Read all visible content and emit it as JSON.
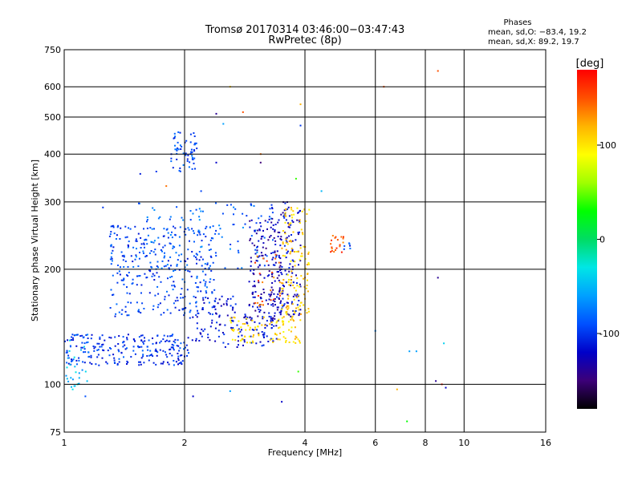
{
  "colors": {
    "background": "#ffffff",
    "gridline": "#000000",
    "colorscale": [
      "#000000",
      "#3c0078",
      "#0000c8",
      "#0050ff",
      "#00a0ff",
      "#00e6e6",
      "#00dc64",
      "#00ff00",
      "#a0ff00",
      "#ffff00",
      "#ffb400",
      "#ff5000",
      "#ff0000"
    ]
  },
  "chart_data": {
    "type": "scatter",
    "title_line1": "Tromsø 20170314 03:46:00−03:47:43",
    "title_line2": "RwPretec (8p)",
    "xlabel": "Frequency [MHz]",
    "ylabel": "Stationary phase Virtual Height [km]",
    "x_scale": "log",
    "y_scale": "log",
    "xlim": [
      1,
      16
    ],
    "ylim": [
      75,
      750
    ],
    "x_ticks": [
      1,
      2,
      4,
      6,
      8,
      10,
      16
    ],
    "y_ticks": [
      75,
      100,
      200,
      300,
      400,
      500,
      600,
      750
    ],
    "grid": true,
    "stats": {
      "title": "Phases",
      "line_o": "mean, sd,O: −83.4, 19.2",
      "line_x": "mean, sd,X:  89.2, 19.7"
    },
    "colorbar": {
      "label": "[deg]",
      "range": [
        -180,
        180
      ],
      "ticks": [
        100,
        0,
        -100
      ]
    },
    "clusters": [
      {
        "name": "low-band trace",
        "freq": [
          1.0,
          2.05
        ],
        "height": [
          112,
          135
        ],
        "phase": -100,
        "n": 240
      },
      {
        "name": "low-band start",
        "freq": [
          1.0,
          1.15
        ],
        "height": [
          98,
          135
        ],
        "phase": -50,
        "n": 30
      },
      {
        "name": "mid trace",
        "freq": [
          1.3,
          2.4
        ],
        "height": [
          150,
          260
        ],
        "phase": -95,
        "n": 320
      },
      {
        "name": "mid upper",
        "freq": [
          1.5,
          3.4
        ],
        "height": [
          200,
          300
        ],
        "phase": -80,
        "n": 120
      },
      {
        "name": "second trace",
        "freq": [
          2.05,
          3.4
        ],
        "height": [
          125,
          170
        ],
        "phase": -115,
        "n": 150
      },
      {
        "name": "cusp region",
        "freq": [
          2.9,
          3.5
        ],
        "height": [
          145,
          270
        ],
        "phase": -130,
        "n": 140
      },
      {
        "name": "high band dense",
        "freq": [
          3.3,
          3.9
        ],
        "height": [
          150,
          300
        ],
        "phase": -120,
        "n": 140
      },
      {
        "name": "x trace lower",
        "freq": [
          2.6,
          3.9
        ],
        "height": [
          128,
          150
        ],
        "phase": 105,
        "n": 90
      },
      {
        "name": "x trace upper",
        "freq": [
          3.5,
          4.1
        ],
        "height": [
          150,
          290
        ],
        "phase": 110,
        "n": 130
      },
      {
        "name": "upper echo",
        "freq": [
          1.85,
          2.15
        ],
        "height": [
          360,
          460
        ],
        "phase": -95,
        "n": 60
      },
      {
        "name": "far cluster",
        "freq": [
          4.55,
          5.0
        ],
        "height": [
          220,
          245
        ],
        "phase": 150,
        "n": 20
      },
      {
        "name": "far cluster blue",
        "freq": [
          5.0,
          5.25
        ],
        "height": [
          225,
          235
        ],
        "phase": -95,
        "n": 6
      },
      {
        "name": "orange mid",
        "freq": [
          3.0,
          3.5
        ],
        "height": [
          160,
          220
        ],
        "phase": 145,
        "n": 25
      }
    ],
    "sparse_points": [
      {
        "f": 2.4,
        "h": 510,
        "p": -140
      },
      {
        "f": 2.5,
        "h": 480,
        "p": -60
      },
      {
        "f": 2.6,
        "h": 600,
        "p": 110
      },
      {
        "f": 2.8,
        "h": 515,
        "p": 150
      },
      {
        "f": 3.1,
        "h": 400,
        "p": 140
      },
      {
        "f": 3.1,
        "h": 380,
        "p": -150
      },
      {
        "f": 3.9,
        "h": 540,
        "p": 120
      },
      {
        "f": 3.9,
        "h": 475,
        "p": -100
      },
      {
        "f": 4.4,
        "h": 320,
        "p": -50
      },
      {
        "f": 6.3,
        "h": 600,
        "p": 150
      },
      {
        "f": 8.6,
        "h": 660,
        "p": 150
      },
      {
        "f": 8.6,
        "h": 190,
        "p": -140
      },
      {
        "f": 8.5,
        "h": 102,
        "p": -140
      },
      {
        "f": 8.8,
        "h": 100,
        "p": 170
      },
      {
        "f": 9.0,
        "h": 98,
        "p": -120
      },
      {
        "f": 8.9,
        "h": 128,
        "p": -40
      },
      {
        "f": 7.3,
        "h": 122,
        "p": -60
      },
      {
        "f": 7.6,
        "h": 122,
        "p": -60
      },
      {
        "f": 6.0,
        "h": 138,
        "p": -70
      },
      {
        "f": 6.8,
        "h": 97,
        "p": 120
      },
      {
        "f": 7.2,
        "h": 80,
        "p": 30
      },
      {
        "f": 3.5,
        "h": 90,
        "p": -120
      },
      {
        "f": 2.6,
        "h": 96,
        "p": -60
      },
      {
        "f": 2.1,
        "h": 93,
        "p": -120
      },
      {
        "f": 1.05,
        "h": 97,
        "p": -30
      },
      {
        "f": 1.08,
        "h": 100,
        "p": -20
      },
      {
        "f": 1.13,
        "h": 93,
        "p": -90
      },
      {
        "f": 1.25,
        "h": 290,
        "p": -100
      },
      {
        "f": 1.35,
        "h": 240,
        "p": -80
      },
      {
        "f": 1.55,
        "h": 355,
        "p": -110
      },
      {
        "f": 1.7,
        "h": 360,
        "p": -100
      },
      {
        "f": 1.8,
        "h": 330,
        "p": 140
      },
      {
        "f": 2.2,
        "h": 320,
        "p": -95
      },
      {
        "f": 2.4,
        "h": 380,
        "p": -120
      },
      {
        "f": 3.8,
        "h": 345,
        "p": 40
      },
      {
        "f": 3.85,
        "h": 108,
        "p": 40
      }
    ]
  }
}
